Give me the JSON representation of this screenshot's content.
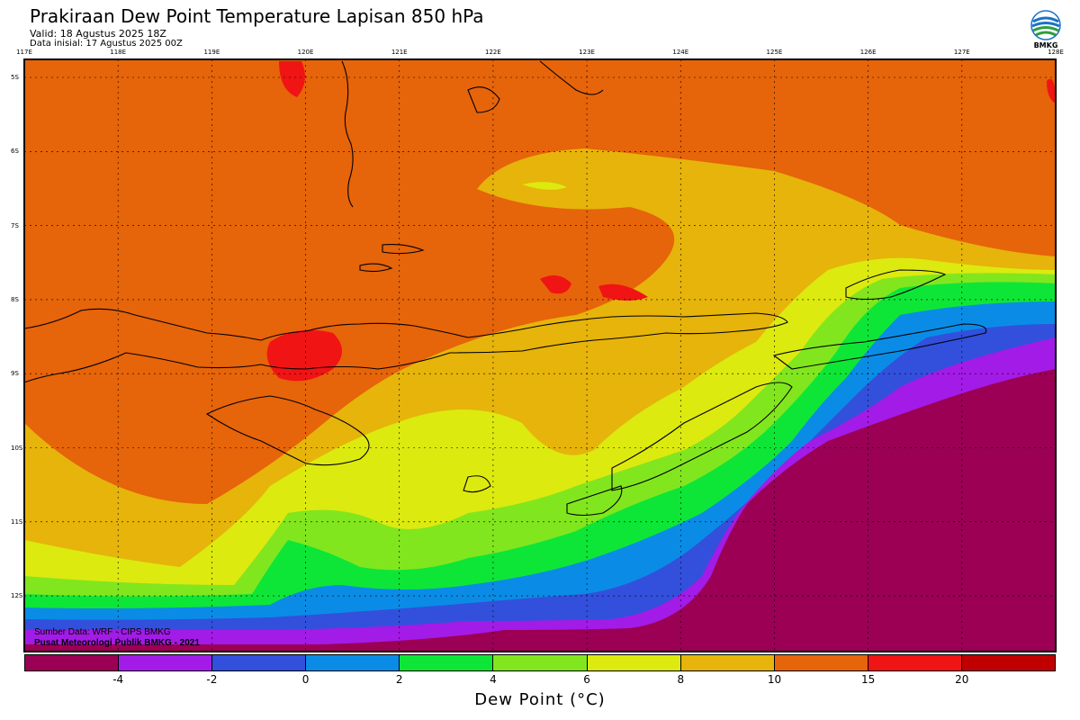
{
  "header": {
    "title": "Prakiraan Dew Point Temperature Lapisan 850 hPa",
    "valid": "Valid: 18 Agustus 2025 18Z",
    "init": "Data inisial: 17 Agustus 2025 00Z"
  },
  "logo": {
    "text": "BMKG",
    "icon": "bmkg-logo-icon"
  },
  "map": {
    "lon_labels": [
      "117E",
      "118E",
      "119E",
      "120E",
      "121E",
      "122E",
      "123E",
      "124E",
      "125E",
      "126E",
      "127E",
      "128E"
    ],
    "lat_labels": [
      "5S",
      "6S",
      "7S",
      "8S",
      "9S",
      "10S",
      "11S",
      "12S"
    ]
  },
  "source": {
    "line1": "Sumber Data: WRF - CIPS BMKG",
    "line2": "Pusat Meteorologi Publik BMKG - 2021"
  },
  "colorbar": {
    "colors": [
      "#9b0055",
      "#a31be6",
      "#3250dc",
      "#0a8ce6",
      "#0ee637",
      "#82e61e",
      "#dcea0f",
      "#e6b40a",
      "#e6640a",
      "#f01414",
      "#c00000"
    ],
    "labels": [
      "-4",
      "-2",
      "0",
      "2",
      "4",
      "6",
      "8",
      "10",
      "15",
      "20"
    ],
    "unit": "Dew Point (°C)"
  },
  "colors": {
    "orange": "#e6640a",
    "gold": "#e6b40a",
    "yellow": "#dcea0f",
    "lime": "#82e61e",
    "green": "#0ee637",
    "sky": "#0a8ce6",
    "blue": "#3250dc",
    "violet": "#a31be6",
    "magenta": "#9b0055",
    "red": "#f01414"
  }
}
